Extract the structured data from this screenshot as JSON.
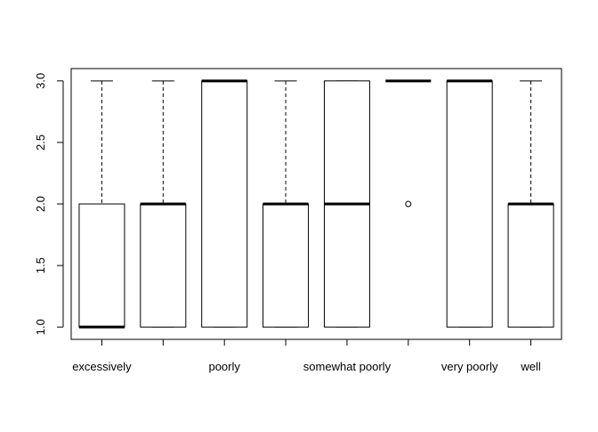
{
  "chart_data": {
    "type": "boxplot",
    "title": "",
    "xlabel": "",
    "ylabel": "",
    "ylim": [
      0.9,
      3.1
    ],
    "y_ticks": [
      1.0,
      1.5,
      2.0,
      2.5,
      3.0
    ],
    "y_tick_labels": [
      "1.0",
      "1.5",
      "2.0",
      "2.5",
      "3.0"
    ],
    "categories": [
      "excessively",
      "",
      "poorly",
      "",
      "somewhat poorly",
      "",
      "very poorly",
      "well"
    ],
    "boxes": [
      {
        "min": 1,
        "q1": 1,
        "median": 1,
        "q3": 2,
        "max": 3,
        "outliers": []
      },
      {
        "min": 1,
        "q1": 1,
        "median": 2,
        "q3": 2,
        "max": 3,
        "outliers": []
      },
      {
        "min": 1,
        "q1": 1,
        "median": 3,
        "q3": 3,
        "max": 3,
        "outliers": []
      },
      {
        "min": 1,
        "q1": 1,
        "median": 2,
        "q3": 2,
        "max": 3,
        "outliers": []
      },
      {
        "min": 1,
        "q1": 1,
        "median": 2,
        "q3": 3,
        "max": 3,
        "outliers": []
      },
      {
        "min": 3,
        "q1": 3,
        "median": 3,
        "q3": 3,
        "max": 3,
        "outliers": [
          2
        ]
      },
      {
        "min": 1,
        "q1": 1,
        "median": 3,
        "q3": 3,
        "max": 3,
        "outliers": []
      },
      {
        "min": 1,
        "q1": 1,
        "median": 2,
        "q3": 2,
        "max": 3,
        "outliers": []
      }
    ],
    "grid": false,
    "colors": {
      "stroke": "#000000",
      "fill": "#ffffff"
    }
  }
}
